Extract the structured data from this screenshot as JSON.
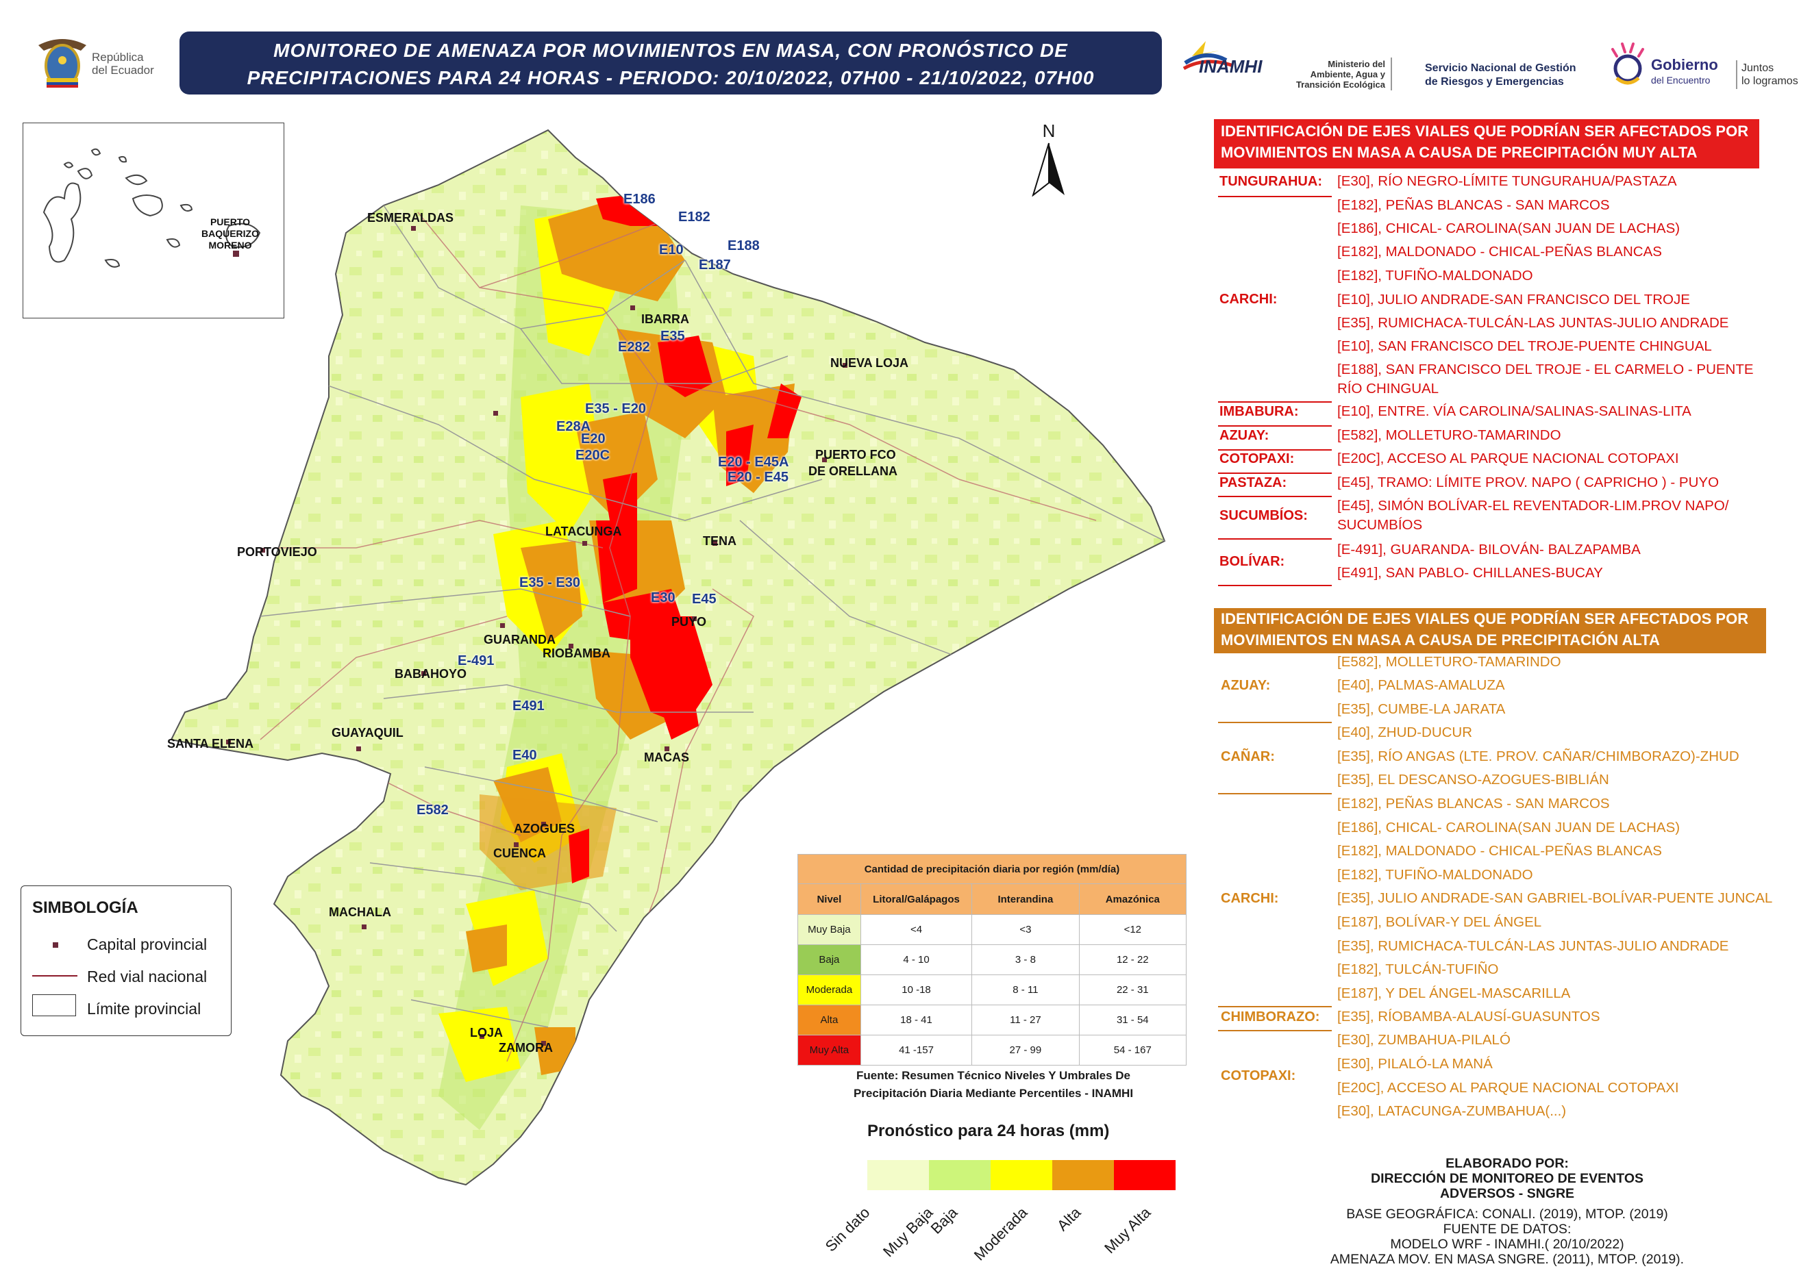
{
  "title": {
    "line1": "MONITOREO DE AMENAZA POR MOVIMIENTOS EN MASA, CON PRONÓSTICO DE",
    "line2": "PRECIPITACIONES PARA 24 HORAS - PERIODO: 20/10/2022, 07H00 - 21/10/2022, 07H00"
  },
  "logos": {
    "republica_line1": "República",
    "republica_line2": "del Ecuador",
    "inamhi": "INAMHI",
    "ministerio_line1": "Ministerio del",
    "ministerio_line2": "Ambiente, Agua y",
    "ministerio_line3": "Transición Ecológica",
    "sngre_line1": "Servicio Nacional de Gestión",
    "sngre_line2": "de Riesgos y Emergencias",
    "gobierno_line1": "Gobierno",
    "gobierno_line2": "del Encuentro",
    "juntos_line1": "Juntos",
    "juntos_line2": "lo logramos"
  },
  "north": "N",
  "inset": {
    "label_line1": "PUERTO",
    "label_line2": "BAQUERIZO",
    "label_line3": "MORENO"
  },
  "map_labels": {
    "cities": [
      "ESMERALDAS",
      "IBARRA",
      "NUEVA LOJA",
      "PUERTO FCO",
      "DE ORELLANA",
      "LATACUNGA",
      "TENA",
      "PORTOVIEJO",
      "GUARANDA",
      "RIOBAMBA",
      "PUYO",
      "BABAHOYO",
      "SANTA ELENA",
      "GUAYAQUIL",
      "MACAS",
      "AZOGUES",
      "CUENCA",
      "MACHALA",
      "LOJA",
      "ZAMORA"
    ],
    "routes": [
      "E186",
      "E182",
      "E10",
      "E188",
      "E187",
      "E35",
      "E282",
      "E35 - E20",
      "E28A",
      "E20",
      "E20C",
      "E20 - E45A",
      "E20 - E45",
      "E35 - E30",
      "E30",
      "E45",
      "E-491",
      "E491",
      "E40",
      "E582"
    ]
  },
  "legend": {
    "title": "SIMBOLOGÍA",
    "items": [
      "Capital provincial",
      "Red vial nacional",
      "Límite provincial"
    ]
  },
  "precip_table": {
    "title": "Cantidad de precipitación diaria por región (mm/día)",
    "headers": [
      "Nivel",
      "Litoral/Galápagos",
      "Interandina",
      "Amazónica"
    ],
    "rows": [
      {
        "nivel": "Muy Baja",
        "litoral": "<4",
        "interandina": "<3",
        "amazonica": "<12",
        "color": "#ecf7c1"
      },
      {
        "nivel": "Baja",
        "litoral": "4 - 10",
        "interandina": "3 - 8",
        "amazonica": "12 - 22",
        "color": "#99cc55"
      },
      {
        "nivel": "Moderada",
        "litoral": "10 -18",
        "interandina": "8 - 11",
        "amazonica": "22 - 31",
        "color": "#ffff00"
      },
      {
        "nivel": "Alta",
        "litoral": "18 - 41",
        "interandina": "11 - 27",
        "amazonica": "31 - 54",
        "color": "#f28c1e"
      },
      {
        "nivel": "Muy Alta",
        "litoral": "41 -157",
        "interandina": "27 - 99",
        "amazonica": "54 - 167",
        "color": "#ee1111"
      }
    ],
    "source_line1": "Fuente: Resumen Técnico Niveles Y Umbrales De",
    "source_line2": "Precipitación Diaria Mediante Percentiles - INAMHI"
  },
  "scale": {
    "title": "Pronóstico para 24 horas (mm)",
    "labels": [
      "Sin dato",
      "Muy Baja",
      "Baja",
      "Moderada",
      "Alta",
      "Muy Alta"
    ],
    "colors": [
      "#f3fcc9",
      "#cdf57a",
      "#ffff00",
      "#e99a12",
      "#ff0000"
    ]
  },
  "muy_alta": {
    "header_line1": "IDENTIFICACIÓN DE EJES VIALES QUE PODRÍAN SER AFECTADOS POR",
    "header_line2": "MOVIMIENTOS EN MASA A CAUSA DE  PRECIPITACIÓN MUY ALTA",
    "groups": [
      {
        "prov": "TUNGURAHUA:",
        "roads": [
          "[E30], RÍO NEGRO-LÍMITE TUNGURAHUA/PASTAZA"
        ]
      },
      {
        "prov": "CARCHI:",
        "roads": [
          "[E182], PEÑAS BLANCAS - SAN MARCOS",
          "[E186], CHICAL- CAROLINA(SAN JUAN DE LACHAS)",
          "[E182], MALDONADO - CHICAL-PEÑAS BLANCAS",
          "[E182], TUFIÑO-MALDONADO",
          "[E10], JULIO ANDRADE-SAN FRANCISCO DEL TROJE",
          "[E35], RUMICHACA-TULCÁN-LAS JUNTAS-JULIO ANDRADE",
          "[E10], SAN FRANCISCO DEL TROJE-PUENTE CHINGUAL",
          "[E188], SAN FRANCISCO DEL TROJE - EL CARMELO - PUENTE",
          "RÍO CHINGUAL"
        ]
      },
      {
        "prov": "IMBABURA:",
        "roads": [
          "[E10], ENTRE. VÍA CAROLINA/SALINAS-SALINAS-LITA"
        ]
      },
      {
        "prov": "AZUAY:",
        "roads": [
          "[E582], MOLLETURO-TAMARINDO"
        ]
      },
      {
        "prov": "COTOPAXI:",
        "roads": [
          "[E20C], ACCESO AL PARQUE NACIONAL COTOPAXI"
        ]
      },
      {
        "prov": "PASTAZA:",
        "roads": [
          "[E45], TRAMO: LÍMITE PROV. NAPO ( CAPRICHO ) - PUYO"
        ]
      },
      {
        "prov": "SUCUMBÍOS:",
        "roads": [
          "[E45], SIMÓN BOLÍVAR-EL REVENTADOR-LIM.PROV NAPO/",
          "SUCUMBÍOS"
        ]
      },
      {
        "prov": "BOLÍVAR:",
        "roads": [
          "[E-491], GUARANDA- BILOVÁN- BALZAPAMBA",
          "[E491], SAN PABLO- CHILLANES-BUCAY"
        ]
      }
    ]
  },
  "alta": {
    "header_line1": "IDENTIFICACIÓN DE EJES VIALES QUE PODRÍAN SER AFECTADOS POR",
    "header_line2": "MOVIMIENTOS EN MASA A CAUSA DE  PRECIPITACIÓN ALTA",
    "groups": [
      {
        "prov": "AZUAY:",
        "roads": [
          "[E582], MOLLETURO-TAMARINDO",
          "[E40], PALMAS-AMALUZA",
          "[E35], CUMBE-LA JARATA"
        ]
      },
      {
        "prov": "CAÑAR:",
        "roads": [
          "[E40], ZHUD-DUCUR",
          "[E35], RÍO ANGAS (LTE. PROV. CAÑAR/CHIMBORAZO)-ZHUD",
          "[E35], EL DESCANSO-AZOGUES-BIBLIÁN"
        ]
      },
      {
        "prov": "CARCHI:",
        "roads": [
          "[E182], PEÑAS BLANCAS - SAN MARCOS",
          "[E186], CHICAL- CAROLINA(SAN JUAN DE LACHAS)",
          "[E182], MALDONADO - CHICAL-PEÑAS BLANCAS",
          "[E182], TUFIÑO-MALDONADO",
          "[E35], JULIO ANDRADE-SAN GABRIEL-BOLÍVAR-PUENTE JUNCAL",
          "[E187], BOLÍVAR-Y DEL ÁNGEL",
          "[E35], RUMICHACA-TULCÁN-LAS JUNTAS-JULIO ANDRADE",
          "[E182], TULCÁN-TUFIÑO",
          "[E187], Y DEL ÁNGEL-MASCARILLA"
        ]
      },
      {
        "prov": "CHIMBORAZO:",
        "roads": [
          "[E35], RÍOBAMBA-ALAUSÍ-GUASUNTOS"
        ]
      },
      {
        "prov": "COTOPAXI:",
        "roads": [
          "[E30], ZUMBAHUA-PILALÓ",
          "[E30], PILALÓ-LA MANÁ",
          "[E20C], ACCESO AL PARQUE NACIONAL COTOPAXI",
          "[E30], LATACUNGA-ZUMBAHUA(...)"
        ]
      }
    ]
  },
  "credits": {
    "line1": "ELABORADO POR:",
    "line2": "DIRECCIÓN DE MONITOREO DE EVENTOS",
    "line3": "ADVERSOS - SNGRE",
    "line4": "BASE GEOGRÁFICA: CONALI. (2019), MTOP. (2019)",
    "line5": "FUENTE DE DATOS:",
    "line6": "MODELO WRF - INAMHI.( 20/10/2022)",
    "line7": "AMENAZA MOV. EN MASA SNGRE. (2011), MTOP. (2019)."
  }
}
